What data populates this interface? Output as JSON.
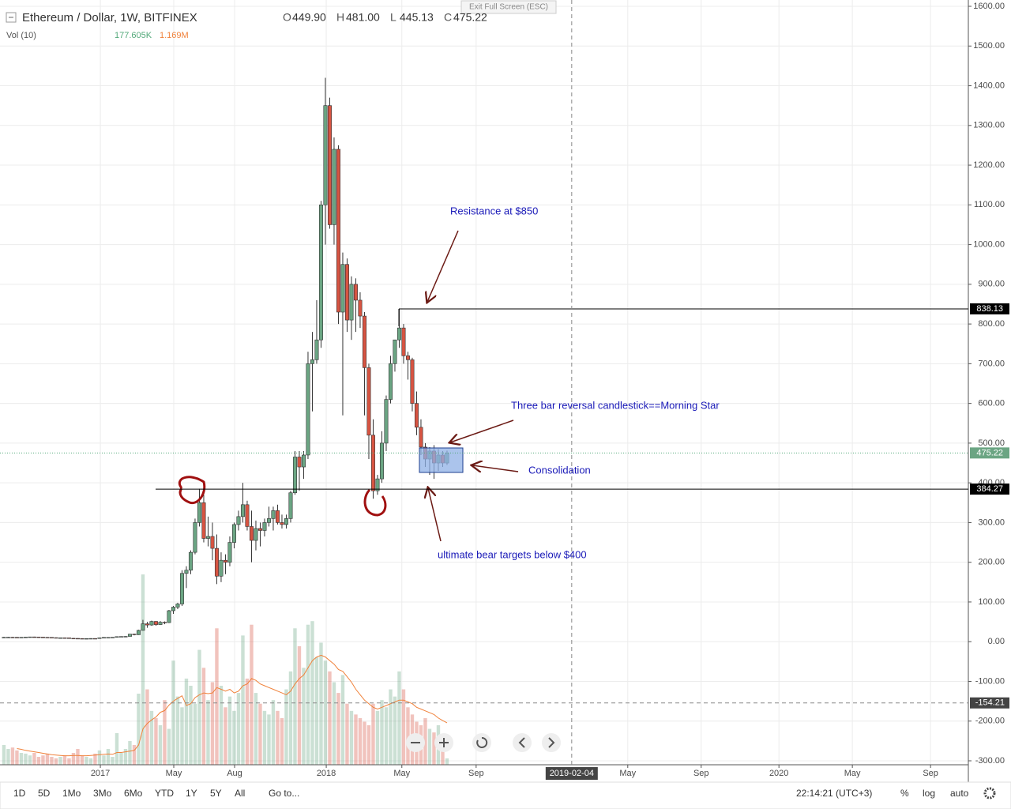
{
  "exit_fullscreen": "Exit Full Screen (ESC)",
  "toolbar": {
    "ranges": [
      "1D",
      "5D",
      "1Mo",
      "3Mo",
      "6Mo",
      "YTD",
      "1Y",
      "5Y",
      "All"
    ],
    "goto": "Go to...",
    "clock": "22:14:21 (UTC+3)",
    "percent": "%",
    "log": "log",
    "auto": "auto"
  },
  "chart_data": {
    "type": "candlestick",
    "series": [
      {
        "name": "Ethereum / Dollar, 1W, BITFINEX",
        "up_color": "#6ba583",
        "down_color": "#d75442",
        "open": [
          11,
          11,
          11.2,
          11,
          10.5,
          11,
          11.5,
          12,
          11.8,
          11.5,
          11,
          10.8,
          10.2,
          9.5,
          9.8,
          9.6,
          8.5,
          8.3,
          8,
          7.8,
          7.9,
          8.1,
          8,
          9.8,
          10.6,
          10.7,
          11.1,
          12.7,
          13,
          13.3,
          19,
          17.5,
          28.5,
          45,
          42,
          51,
          43,
          49,
          48,
          78,
          87,
          95,
          172,
          180,
          225,
          300,
          350,
          260,
          265,
          235,
          165,
          205,
          200,
          250,
          295,
          315,
          345,
          290,
          255,
          285,
          280,
          300,
          310,
          330,
          300,
          295,
          310,
          375,
          465,
          440,
          470,
          700,
          710,
          760,
          1100,
          1350,
          1050,
          1240,
          830,
          950,
          810,
          900,
          860,
          820,
          690,
          520,
          380,
          410,
          500,
          610,
          700,
          760,
          790,
          720,
          710,
          600,
          540,
          490,
          460,
          480,
          450,
          470,
          449.9
        ],
        "high": [
          12,
          12,
          12,
          11.8,
          11.5,
          12,
          12.3,
          12.5,
          12.3,
          12,
          11.5,
          11.2,
          10.5,
          10,
          10.2,
          9.9,
          9,
          8.6,
          8.3,
          8.2,
          8.5,
          8.4,
          10.5,
          11.5,
          11,
          11.3,
          12.8,
          13.5,
          14,
          19.5,
          20,
          30,
          55,
          50,
          53,
          52,
          52,
          51,
          80,
          90,
          98,
          180,
          190,
          230,
          310,
          385,
          370,
          315,
          300,
          270,
          225,
          220,
          265,
          300,
          330,
          400,
          355,
          330,
          305,
          300,
          310,
          340,
          340,
          345,
          320,
          320,
          380,
          480,
          480,
          480,
          730,
          780,
          860,
          1110,
          1420,
          1370,
          1270,
          1250,
          980,
          965,
          920,
          915,
          880,
          830,
          700,
          560,
          420,
          530,
          620,
          720,
          760,
          838,
          800,
          730,
          715,
          630,
          560,
          500,
          490,
          495,
          485,
          480,
          481
        ],
        "low": [
          10.5,
          10.6,
          10.5,
          10.3,
          10,
          10.8,
          11,
          11.3,
          11,
          10.8,
          10.5,
          10,
          9.2,
          9,
          9.3,
          8.2,
          8,
          7.8,
          7.5,
          7.4,
          7.6,
          7.8,
          8,
          9.5,
          10.2,
          10.4,
          11,
          12.5,
          12.8,
          13,
          16,
          17,
          28,
          35,
          40,
          40,
          42,
          44,
          47,
          70,
          82,
          90,
          135,
          170,
          220,
          290,
          250,
          240,
          205,
          145,
          150,
          170,
          190,
          235,
          280,
          300,
          280,
          200,
          230,
          240,
          265,
          290,
          280,
          295,
          285,
          285,
          300,
          370,
          380,
          410,
          460,
          580,
          700,
          740,
          1000,
          1040,
          1000,
          800,
          570,
          780,
          760,
          780,
          790,
          570,
          460,
          360,
          370,
          400,
          480,
          600,
          680,
          740,
          700,
          660,
          580,
          520,
          470,
          440,
          420,
          410,
          430,
          440,
          445.13
        ],
        "close": [
          11,
          11.2,
          11,
          10.5,
          11,
          11.5,
          12,
          11.8,
          11.5,
          11,
          10.8,
          10.2,
          9.5,
          9.8,
          9.6,
          8.5,
          8.3,
          8,
          7.8,
          7.9,
          8.1,
          8,
          9.8,
          10.6,
          10.7,
          11.1,
          12.7,
          13,
          13.3,
          19,
          17.5,
          28.5,
          45,
          42,
          51,
          43,
          49,
          48,
          78,
          87,
          95,
          172,
          180,
          225,
          300,
          350,
          260,
          265,
          235,
          165,
          205,
          200,
          250,
          295,
          315,
          345,
          290,
          255,
          285,
          280,
          300,
          310,
          330,
          300,
          295,
          310,
          375,
          465,
          440,
          470,
          700,
          710,
          760,
          1100,
          1350,
          1050,
          1240,
          830,
          950,
          810,
          900,
          860,
          820,
          690,
          520,
          380,
          410,
          500,
          610,
          700,
          760,
          790,
          720,
          710,
          600,
          540,
          490,
          460,
          480,
          450,
          470,
          450,
          475.22
        ]
      }
    ],
    "ohlc_labels": [
      [
        "O",
        "449.90"
      ],
      [
        "H",
        "481.00"
      ],
      [
        "L",
        "445.13"
      ],
      [
        "C",
        "475.22"
      ]
    ],
    "volume": {
      "name": "Vol (10)",
      "value_label": "177.605K",
      "ma_label": "1.169M",
      "ma_color": "#f0813a",
      "ylim": [
        0,
        5500000
      ],
      "values": [
        550000,
        440000,
        480000,
        400000,
        330000,
        310000,
        260000,
        330000,
        220000,
        260000,
        310000,
        220000,
        180000,
        220000,
        260000,
        180000,
        330000,
        440000,
        260000,
        220000,
        180000,
        310000,
        400000,
        260000,
        440000,
        220000,
        880000,
        330000,
        440000,
        660000,
        550000,
        1980000,
        5300000,
        2100000,
        1500000,
        1300000,
        1100000,
        1800000,
        1000000,
        2900000,
        1900000,
        1600000,
        2400000,
        2200000,
        1700000,
        3200000,
        2700000,
        1800000,
        2300000,
        3800000,
        2200000,
        1600000,
        1900000,
        1500000,
        2000000,
        3600000,
        2400000,
        3900000,
        2000000,
        1700000,
        1500000,
        1400000,
        1800000,
        1500000,
        1300000,
        2100000,
        2600000,
        3800000,
        3300000,
        2700000,
        3900000,
        4000000,
        3000000,
        3400000,
        2900000,
        2600000,
        2300000,
        2000000,
        2500000,
        1700000,
        1500000,
        1400000,
        1300000,
        1200000,
        1100000,
        1700000,
        1500000,
        1800000,
        1600000,
        2100000,
        1900000,
        2600000,
        2100000,
        1600000,
        1400000,
        1200000,
        1100000,
        1300000,
        1000000,
        900000,
        1100000,
        700000,
        177605
      ],
      "ma_values": [
        null,
        null,
        null,
        450000,
        430000,
        400000,
        380000,
        360000,
        340000,
        320000,
        300000,
        280000,
        270000,
        260000,
        250000,
        250000,
        260000,
        260000,
        250000,
        250000,
        260000,
        270000,
        280000,
        290000,
        300000,
        290000,
        340000,
        340000,
        360000,
        380000,
        400000,
        550000,
        1000000,
        1150000,
        1250000,
        1330000,
        1460000,
        1510000,
        1660000,
        1770000,
        1850000,
        1920000,
        1650000,
        1700000,
        1870000,
        1950000,
        2000000,
        1980000,
        2000000,
        2150000,
        2100000,
        2050000,
        2100000,
        2000000,
        2050000,
        2200000,
        2250000,
        2400000,
        2350000,
        2250000,
        2200000,
        2150000,
        2100000,
        2050000,
        2000000,
        1950000,
        2050000,
        2250000,
        2400000,
        2500000,
        2700000,
        2900000,
        3000000,
        3050000,
        3000000,
        2900000,
        2800000,
        2650000,
        2600000,
        2450000,
        2300000,
        2100000,
        1950000,
        1800000,
        1700000,
        1600000,
        1550000,
        1600000,
        1650000,
        1700000,
        1750000,
        1800000,
        1800000,
        1750000,
        1700000,
        1600000,
        1550000,
        1500000,
        1450000,
        1400000,
        1300000,
        1230000,
        1169000
      ]
    },
    "xlim": [
      -0.9,
      222
    ],
    "xticks": [
      {
        "value": 22.2,
        "label": "2017"
      },
      {
        "value": 39.1,
        "label": "May"
      },
      {
        "value": 53.1,
        "label": "Aug"
      },
      {
        "value": 74.2,
        "label": "2018"
      },
      {
        "value": 91.6,
        "label": "May"
      },
      {
        "value": 108.7,
        "label": "Sep"
      },
      {
        "value": 143.6,
        "label": "May"
      },
      {
        "value": 160.5,
        "label": "Sep"
      },
      {
        "value": 178.4,
        "label": "2020"
      },
      {
        "value": 195.3,
        "label": "May"
      },
      {
        "value": 213.3,
        "label": "Sep"
      }
    ],
    "ylim": [
      -300,
      1600
    ],
    "yticks": [
      {
        "value": -300,
        "label": "-300.00"
      },
      {
        "value": -200,
        "label": "-200.00"
      },
      {
        "value": -100,
        "label": "-100.00"
      },
      {
        "value": 0,
        "label": "0.00"
      },
      {
        "value": 100,
        "label": "100.00"
      },
      {
        "value": 200,
        "label": "200.00"
      },
      {
        "value": 300,
        "label": "300.00"
      },
      {
        "value": 400,
        "label": "400.00"
      },
      {
        "value": 500,
        "label": "500.00"
      },
      {
        "value": 600,
        "label": "600.00"
      },
      {
        "value": 700,
        "label": "700.00"
      },
      {
        "value": 800,
        "label": "800.00"
      },
      {
        "value": 900,
        "label": "900.00"
      },
      {
        "value": 1000,
        "label": "1000.00"
      },
      {
        "value": 1100,
        "label": "1100.00"
      },
      {
        "value": 1200,
        "label": "1200.00"
      },
      {
        "value": 1300,
        "label": "1300.00"
      },
      {
        "value": 1400,
        "label": "1400.00"
      },
      {
        "value": 1500,
        "label": "1500.00"
      },
      {
        "value": 1600,
        "label": "1600.00"
      }
    ],
    "grid": true,
    "levels": [
      {
        "value": 838.13,
        "label": "838.13"
      },
      {
        "value": 384.27,
        "label": "384.27"
      }
    ],
    "last_price": {
      "value": 475.22,
      "label": "475.22"
    },
    "crosshair": {
      "x": 130.7,
      "x_label": "2019-02-04",
      "y": -154.21,
      "y_label": "-154.21"
    },
    "annotations": [
      "Resistance at $850",
      "Three bar reversal candlestick==Morning Star",
      "Consolidation",
      "ultimate bear targets below $400"
    ]
  }
}
